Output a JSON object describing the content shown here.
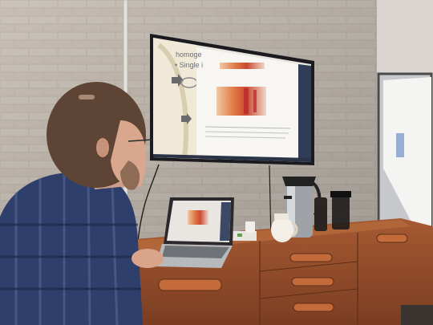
{
  "scene": {
    "description_tags": [
      "meeting-room",
      "presenter",
      "wall-tv",
      "laptop",
      "sideboard",
      "flip-chart"
    ]
  },
  "tv_slide": {
    "line1": "homoge",
    "line2": "• Single i"
  },
  "colors": {
    "brick": "#cfc6bb",
    "mortar": "#e6e0d8",
    "cabinet": "#8e4a2a",
    "cabinet_top": "#a45b34",
    "shirt_blue": "#2f3f6b",
    "tv_bezel": "#1b1b1f",
    "heatmap_warm": "#d8643a"
  }
}
